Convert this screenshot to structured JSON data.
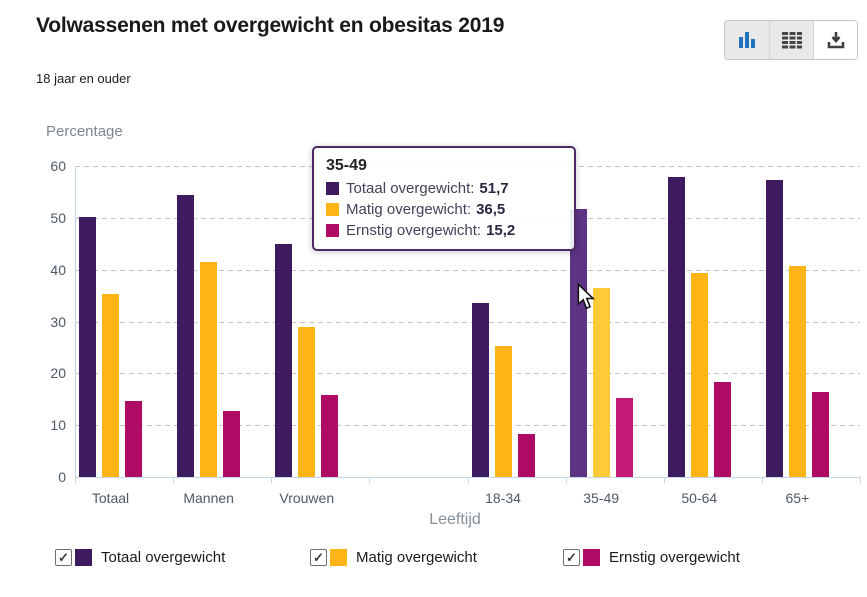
{
  "header": {
    "title": "Volwassenen met overgewicht en obesitas 2019",
    "subtitle": "18 jaar en ouder",
    "toolbar_buttons": [
      {
        "icon": "bar-chart-icon",
        "active": true
      },
      {
        "icon": "table-icon",
        "active": true
      },
      {
        "icon": "download-icon",
        "active": false
      }
    ]
  },
  "chart_data": {
    "type": "bar",
    "title": "Volwassenen met overgewicht en obesitas 2019",
    "subtitle": "18 jaar en ouder",
    "ylabel": "Percentage",
    "xlabel": "Leeftijd",
    "ylim": [
      0,
      60
    ],
    "yticks": [
      0,
      10,
      20,
      30,
      40,
      50,
      60
    ],
    "grid": "horizontal-dashed",
    "legend_position": "bottom",
    "categories": [
      "Totaal",
      "Mannen",
      "Vrouwen",
      "",
      "18-34",
      "35-49",
      "50-64",
      "65+"
    ],
    "series": [
      {
        "name": "Totaal overgewicht",
        "color": "#3e1a5e",
        "hover_color": "#5c3483",
        "values": [
          50.1,
          54.4,
          45.0,
          null,
          33.5,
          51.7,
          57.8,
          57.3
        ]
      },
      {
        "name": "Matig overgewicht",
        "color": "#fcb515",
        "hover_color": "#fecb38",
        "values": [
          35.3,
          41.4,
          29.0,
          null,
          25.3,
          36.5,
          39.3,
          40.8
        ]
      },
      {
        "name": "Ernstig overgewicht",
        "color": "#b00b64",
        "hover_color": "#c41a75",
        "values": [
          14.6,
          12.8,
          15.9,
          null,
          8.2,
          15.2,
          18.4,
          16.4
        ]
      }
    ],
    "hovered_category": "35-49"
  },
  "tooltip": {
    "category": "35-49",
    "rows": [
      {
        "label": "Totaal overgewicht:",
        "value": "51,7",
        "color": "#3e1a5e"
      },
      {
        "label": "Matig overgewicht:",
        "value": "36,5",
        "color": "#fcb515"
      },
      {
        "label": "Ernstig overgewicht:",
        "value": "15,2",
        "color": "#b00b64"
      }
    ]
  },
  "legend": {
    "items": [
      {
        "label": "Totaal overgewicht",
        "checked": true,
        "color": "#3e1a5e"
      },
      {
        "label": "Matig overgewicht",
        "checked": true,
        "color": "#fcb515"
      },
      {
        "label": "Ernstig overgewicht",
        "checked": true,
        "color": "#b00b64"
      }
    ]
  }
}
